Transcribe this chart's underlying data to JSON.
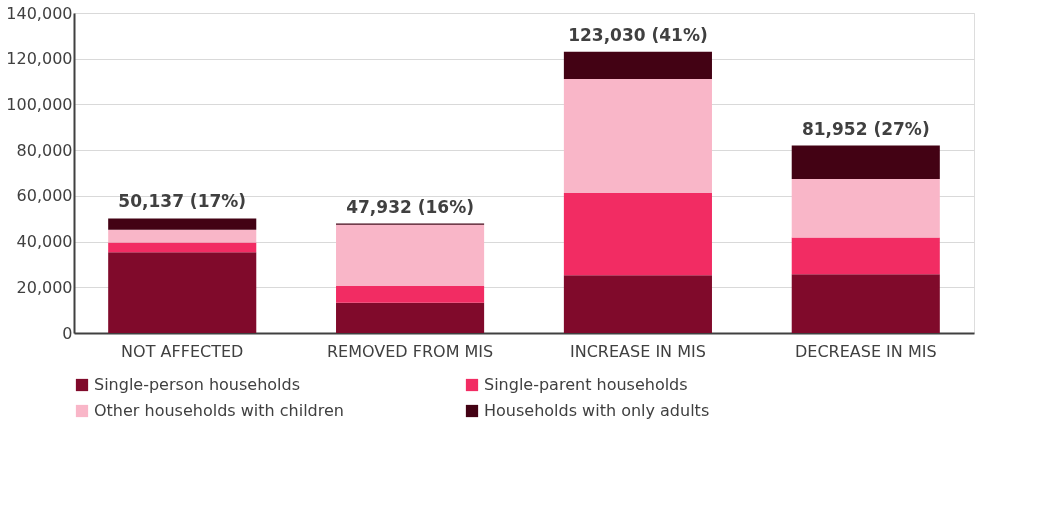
{
  "chart_data": {
    "type": "bar",
    "stacked": true,
    "categories": [
      "NOT AFFECTED",
      "REMOVED FROM MIS",
      "INCREASE IN MIS",
      "DECREASE IN MIS"
    ],
    "series": [
      {
        "name": "Single-person households",
        "color": "#800a2b",
        "values": [
          35300,
          13200,
          25300,
          25700
        ]
      },
      {
        "name": "Single-parent households",
        "color": "#f22c63",
        "values": [
          4300,
          7400,
          35900,
          16100
        ]
      },
      {
        "name": "Other households with children",
        "color": "#f9b6c8",
        "values": [
          5600,
          26800,
          49900,
          25600
        ]
      },
      {
        "name": "Households with only adults",
        "color": "#430214",
        "values": [
          4900,
          500,
          11900,
          14600
        ]
      }
    ],
    "totals": [
      "50,137 (17%)",
      "47,932 (16%)",
      "123,030 (41%)",
      "81,952 (27%)"
    ],
    "ylim": [
      0,
      140000
    ],
    "yticks": [
      0,
      {
        "value": 20000,
        "label": "20,000"
      },
      {
        "value": 40000,
        "label": "40,000"
      },
      {
        "value": 60000,
        "label": "60,000"
      },
      {
        "value": 80000,
        "label": "80,000"
      },
      {
        "value": 100000,
        "label": "100,000"
      },
      {
        "value": 120000,
        "label": "120,000"
      },
      {
        "value": 140000,
        "label": "140,000"
      }
    ],
    "grid": "y",
    "legend": "bottom"
  }
}
